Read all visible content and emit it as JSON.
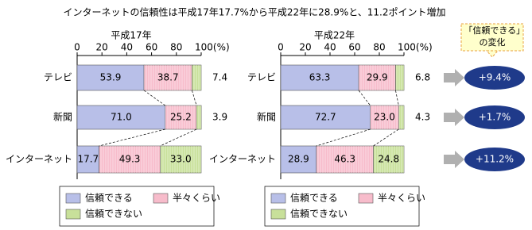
{
  "title": "インターネットの信頼性は平成17年17.7%から平成22年に28.9%と、11.2ポイント増加",
  "chart_data": [
    {
      "type": "stacked-bar",
      "title": "平成17年",
      "categories": [
        "テレビ",
        "新聞",
        "インターネット"
      ],
      "series": [
        {
          "name": "信頼できる",
          "color": "#b8bfe8",
          "values": [
            53.9,
            71.0,
            17.7
          ],
          "value_labels": [
            "53.9",
            "71.0",
            "17.7"
          ]
        },
        {
          "name": "半々くらい",
          "color": "#f7bccb",
          "values": [
            38.7,
            25.2,
            49.3
          ],
          "value_labels": [
            "38.7",
            "25.2",
            "49.3"
          ]
        },
        {
          "name": "信頼できない",
          "color": "#c8e09a",
          "values": [
            7.4,
            3.9,
            33.0
          ],
          "value_labels": [
            "7.4",
            "3.9",
            "33.0"
          ]
        }
      ],
      "xlim": [
        0,
        100
      ],
      "xticks": [
        0,
        20,
        40,
        60,
        80,
        {
          "value": 100,
          "label": "100(%)"
        }
      ]
    },
    {
      "type": "stacked-bar",
      "title": "平成22年",
      "categories": [
        "テレビ",
        "新聞",
        "インターネット"
      ],
      "series": [
        {
          "name": "信頼できる",
          "color": "#b8bfe8",
          "values": [
            63.3,
            72.7,
            28.9
          ],
          "value_labels": [
            "63.3",
            "72.7",
            "28.9"
          ]
        },
        {
          "name": "半々くらい",
          "color": "#f7bccb",
          "values": [
            29.9,
            23.0,
            46.3
          ],
          "value_labels": [
            "29.9",
            "23.0",
            "46.3"
          ]
        },
        {
          "name": "信頼できない",
          "color": "#c8e09a",
          "values": [
            6.8,
            4.3,
            24.8
          ],
          "value_labels": [
            "6.8",
            "4.3",
            "24.8"
          ]
        }
      ],
      "xlim": [
        0,
        100
      ],
      "xticks": [
        0,
        20,
        40,
        60,
        80,
        {
          "value": 100,
          "label": "100(%)"
        }
      ]
    }
  ],
  "change": {
    "title": "「信頼できる」の変化",
    "color": "#1f3a8a",
    "values": [
      9.4,
      1.7,
      11.2
    ],
    "value_labels": [
      "+9.4%",
      "+1.7%",
      "+11.2%"
    ]
  }
}
